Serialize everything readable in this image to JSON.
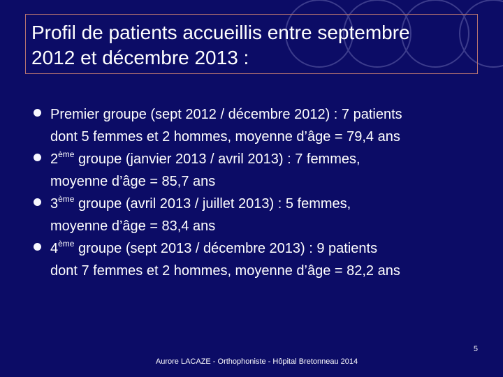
{
  "colors": {
    "background": "#0c0c66",
    "text": "#ffffff",
    "title_border": "#b07070",
    "decor_circles": "#3c3c8c"
  },
  "title": {
    "line1": "Profil de patients accueillis entre septembre",
    "line2": "2012 et décembre 2013 :"
  },
  "bullets": [
    {
      "icon": "bullet-dot",
      "line1": "Premier groupe (sept 2012 / décembre 2012) : 7 patients",
      "line2": "dont 5 femmes et 2 hommes, moyenne d’âge = 79,4 ans"
    },
    {
      "icon": "bullet-dot",
      "num": "2",
      "sup": "ème",
      "line1_rest": " groupe (janvier 2013 / avril 2013) : 7 femmes,",
      "line2": "moyenne d’âge = 85,7 ans"
    },
    {
      "icon": "bullet-dot",
      "num": "3",
      "sup": "ème",
      "line1_rest": " groupe (avril 2013 / juillet 2013) : 5 femmes,",
      "line2": "moyenne d’âge = 83,4 ans"
    },
    {
      "icon": "bullet-dot",
      "num": "4",
      "sup": "ème",
      "line1_rest": " groupe (sept 2013 / décembre 2013) : 9 patients",
      "line2": "dont 7 femmes et 2 hommes, moyenne d’âge = 82,2 ans"
    }
  ],
  "page_number": "5",
  "footer": "Aurore LACAZE - Orthophoniste - Hôpital Bretonneau 2014"
}
